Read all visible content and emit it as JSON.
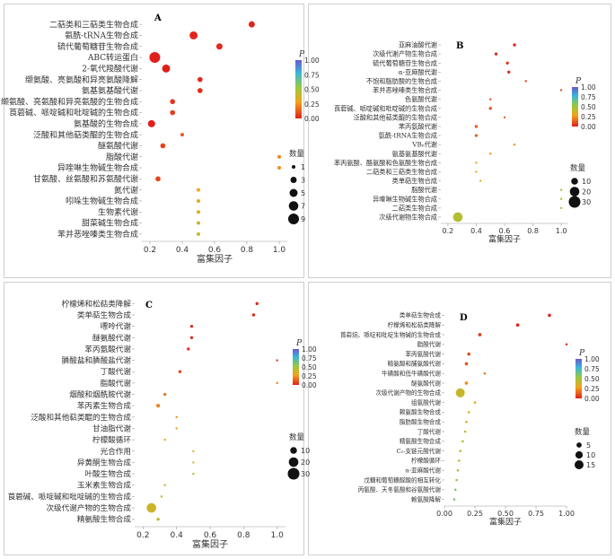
{
  "chart_data": [
    {
      "type": "scatter",
      "panel_label": "A",
      "xlabel": "富集因子",
      "ylabel": "",
      "xlim": [
        0.15,
        1.05
      ],
      "xticks": [
        "0.2",
        "0.4",
        "0.6",
        "0.8",
        "1.0"
      ],
      "xtick_values": [
        0.2,
        0.4,
        0.6,
        0.8,
        1.0
      ],
      "color_title": "P",
      "color_ticks": [
        "1.00",
        "0.75",
        "0.50",
        "0.25",
        "0.00"
      ],
      "size_title": "数量",
      "size_legend": [
        1,
        3,
        5,
        7,
        9
      ],
      "size_labels": [
        "1",
        "3",
        "5",
        "7",
        "9"
      ],
      "size_range": [
        1,
        9
      ],
      "categories": [
        "二萜类和三萜类生物合成",
        "氨酰-tRNA生物合成",
        "硫代葡萄糖苷生物合成",
        "ABC转运蛋白",
        "2-氧代羧酸代谢",
        "缬氨酸、亮氨酸和异亮氨酸降解",
        "氨基氨基酸代谢",
        "缬氨酸、亮氨酸和异亮氨酸的生物合成",
        "莨菪碱、哌啶碱和吡啶碱的生物合成",
        "氨基酸的生物合成",
        "泛酸和其他萜类醌的生物合成",
        "醚氨酸代谢",
        "脂酸代谢",
        "异喹啉生物碱生物合成",
        "甘氨酸、丝氨酸和苏氨酸代谢",
        "氮代谢",
        "吲哚生物碱生物合成",
        "生物素代谢",
        "甜菜碱生物合成",
        "苯并恶唑嗪类生物合成"
      ],
      "points": [
        {
          "x": 0.83,
          "count": 3,
          "p": 0.01
        },
        {
          "x": 0.47,
          "count": 5,
          "p": 0.01
        },
        {
          "x": 0.63,
          "count": 3,
          "p": 0.02
        },
        {
          "x": 0.23,
          "count": 9,
          "p": 0.0
        },
        {
          "x": 0.3,
          "count": 5,
          "p": 0.0
        },
        {
          "x": 0.51,
          "count": 2,
          "p": 0.02
        },
        {
          "x": 0.51,
          "count": 2,
          "p": 0.03
        },
        {
          "x": 0.34,
          "count": 2,
          "p": 0.05
        },
        {
          "x": 0.34,
          "count": 2,
          "p": 0.06
        },
        {
          "x": 0.21,
          "count": 4,
          "p": 0.0
        },
        {
          "x": 0.4,
          "count": 1,
          "p": 0.12
        },
        {
          "x": 0.28,
          "count": 2,
          "p": 0.07
        },
        {
          "x": 1.0,
          "count": 1,
          "p": 0.22
        },
        {
          "x": 1.0,
          "count": 1,
          "p": 0.24
        },
        {
          "x": 0.25,
          "count": 2,
          "p": 0.08
        },
        {
          "x": 0.5,
          "count": 1,
          "p": 0.28
        },
        {
          "x": 0.5,
          "count": 1,
          "p": 0.32
        },
        {
          "x": 0.5,
          "count": 1,
          "p": 0.35
        },
        {
          "x": 0.5,
          "count": 1,
          "p": 0.38
        },
        {
          "x": 0.5,
          "count": 1,
          "p": 0.42
        }
      ]
    },
    {
      "type": "scatter",
      "panel_label": "B",
      "xlabel": "富集因子",
      "ylabel": "",
      "xlim": [
        0.15,
        1.05
      ],
      "xticks": [
        "0.2",
        "0.4",
        "0.6",
        "0.8",
        "1.0"
      ],
      "xtick_values": [
        0.2,
        0.4,
        0.6,
        0.8,
        1.0
      ],
      "color_title": "P",
      "color_ticks": [
        "1.00",
        "0.75",
        "0.50",
        "0.25",
        "0.00"
      ],
      "size_title": "数量",
      "size_legend": [
        10,
        20,
        30
      ],
      "size_labels": [
        "10",
        "20",
        "30"
      ],
      "size_range": [
        1,
        30
      ],
      "categories": [
        "亚麻油酸代谢",
        "次级代谢产物生物合成",
        "硫代葡萄糖苷生物合成",
        "α-亚麻酸代谢",
        "不饱和脂肪酸的生物合成",
        "苯并恶唑嗪类生物合成",
        "色氨酸代谢",
        "莨菪碱、哌啶碱和吡啶碱的生物合成",
        "泛酸和其他萜类醌的生物合成",
        "苯丙氨酸代谢",
        "氨酰-tRNA生物合成",
        "VB₆代谢",
        "氨基氨基酸代谢",
        "苯丙氨酸、酪氨酸和色氨酸生物合成",
        "二萜类和三萜类生物合成",
        "类单萜生物合成",
        "脂酸代谢",
        "异喹啉生物碱生物合成",
        "二萜类生物合成",
        "次级代谢物生物合成"
      ],
      "points": [
        {
          "x": 0.67,
          "count": 2,
          "p": 0.0
        },
        {
          "x": 0.54,
          "count": 2,
          "p": 0.02
        },
        {
          "x": 0.62,
          "count": 2,
          "p": 0.03
        },
        {
          "x": 0.63,
          "count": 2,
          "p": 0.03
        },
        {
          "x": 0.75,
          "count": 1,
          "p": 0.07
        },
        {
          "x": 1.0,
          "count": 1,
          "p": 0.08
        },
        {
          "x": 0.5,
          "count": 1,
          "p": 0.1
        },
        {
          "x": 0.5,
          "count": 2,
          "p": 0.1
        },
        {
          "x": 0.6,
          "count": 1,
          "p": 0.13
        },
        {
          "x": 0.4,
          "count": 2,
          "p": 0.12
        },
        {
          "x": 0.4,
          "count": 2,
          "p": 0.14
        },
        {
          "x": 0.67,
          "count": 1,
          "p": 0.22
        },
        {
          "x": 0.5,
          "count": 1,
          "p": 0.26
        },
        {
          "x": 0.4,
          "count": 1,
          "p": 0.28
        },
        {
          "x": 0.4,
          "count": 1,
          "p": 0.31
        },
        {
          "x": 0.43,
          "count": 1,
          "p": 0.35
        },
        {
          "x": 1.0,
          "count": 1,
          "p": 0.42
        },
        {
          "x": 1.0,
          "count": 1,
          "p": 0.45
        },
        {
          "x": 1.0,
          "count": 1,
          "p": 0.48
        },
        {
          "x": 0.27,
          "count": 20,
          "p": 0.45
        }
      ]
    },
    {
      "type": "scatter",
      "panel_label": "C",
      "xlabel": "富集因子",
      "ylabel": "",
      "xlim": [
        0.15,
        1.05
      ],
      "xticks": [
        "0.2",
        "0.4",
        "0.6",
        "0.8",
        "1.0"
      ],
      "xtick_values": [
        0.2,
        0.4,
        0.6,
        0.8,
        1.0
      ],
      "color_title": "P",
      "color_ticks": [
        "1.00",
        "0.75",
        "0.50",
        "0.25",
        "0.00"
      ],
      "size_title": "数量",
      "size_legend": [
        10,
        20,
        30
      ],
      "size_labels": [
        "10",
        "20",
        "30"
      ],
      "size_range": [
        1,
        30
      ],
      "categories": [
        "柠檬烯和松萜类降解",
        "类单萜生物合成",
        "嘌呤代谢",
        "醚氨酸代谢",
        "苯丙氨酸代谢",
        "膦酸盐和膦酸盐代谢",
        "丁酸代谢",
        "脂酸代谢",
        "烟酸和烟酰胺代谢",
        "苯丙素生物合成",
        "泛酸和其他萜类醌的生物合成",
        "甘油脂代谢",
        "柠檬酸循环",
        "光合作用",
        "异黄酮生物合成",
        "叶酸生物合成",
        "玉米素生物合成",
        "莨菪碱、哌啶碱和吡啶碱的生物合成",
        "次级代谢产物的生物合成",
        "精氨酸生物合成"
      ],
      "points": [
        {
          "x": 0.88,
          "count": 2,
          "p": 0.01
        },
        {
          "x": 0.86,
          "count": 2,
          "p": 0.01
        },
        {
          "x": 0.49,
          "count": 2,
          "p": 0.02
        },
        {
          "x": 0.49,
          "count": 2,
          "p": 0.02
        },
        {
          "x": 0.47,
          "count": 2,
          "p": 0.03
        },
        {
          "x": 1.0,
          "count": 1,
          "p": 0.06
        },
        {
          "x": 0.42,
          "count": 2,
          "p": 0.08
        },
        {
          "x": 1.0,
          "count": 1,
          "p": 0.22
        },
        {
          "x": 0.33,
          "count": 2,
          "p": 0.18
        },
        {
          "x": 0.29,
          "count": 3,
          "p": 0.2
        },
        {
          "x": 0.4,
          "count": 1,
          "p": 0.24
        },
        {
          "x": 0.4,
          "count": 1,
          "p": 0.27
        },
        {
          "x": 0.33,
          "count": 1,
          "p": 0.3
        },
        {
          "x": 0.5,
          "count": 1,
          "p": 0.36
        },
        {
          "x": 0.5,
          "count": 1,
          "p": 0.39
        },
        {
          "x": 0.5,
          "count": 1,
          "p": 0.42
        },
        {
          "x": 0.33,
          "count": 1,
          "p": 0.36
        },
        {
          "x": 0.31,
          "count": 1,
          "p": 0.38
        },
        {
          "x": 0.25,
          "count": 20,
          "p": 0.38
        },
        {
          "x": 0.29,
          "count": 2,
          "p": 0.4
        }
      ]
    },
    {
      "type": "scatter",
      "panel_label": "D",
      "xlabel": "富集因子",
      "ylabel": "",
      "xlim": [
        0.0,
        1.0
      ],
      "xticks": [
        "0.00",
        "0.25",
        "0.50",
        "0.75",
        "1.00"
      ],
      "xtick_values": [
        0.0,
        0.25,
        0.5,
        0.75,
        1.0
      ],
      "color_title": "P",
      "color_ticks": [
        "1.00",
        "0.75",
        "0.50",
        "0.25",
        "0.00"
      ],
      "size_title": "数量",
      "size_legend": [
        5,
        10,
        15
      ],
      "size_labels": [
        "5",
        "10",
        "15"
      ],
      "size_range": [
        1,
        15
      ],
      "categories": [
        "类单萜生物合成",
        "柠檬烯和松萜类降解",
        "莨菪烷、哌啶和吡啶生物碱的生物合成",
        "脂酸代谢",
        "苯丙氨酸代谢",
        "精氨酸和脯氨酸代谢",
        "牛磺酸和低牛磺酸代谢",
        "醚氨酸代谢",
        "次级代谢产物的生物合成",
        "组氨酸代谢",
        "赖氨酸生物合成",
        "脂肪酸生物合成",
        "丁酸代谢",
        "精氨酸生物合成",
        "C₅-支链元酸代谢",
        "柠檬酸循环",
        "α-亚麻酸代谢",
        "戊糖和葡萄糖醛酸的相互转化",
        "丙氨酸、天冬氨酸和谷氨酸代谢",
        "赖氨酸降解"
      ],
      "points": [
        {
          "x": 0.86,
          "count": 2,
          "p": 0.01
        },
        {
          "x": 0.6,
          "count": 2,
          "p": 0.01
        },
        {
          "x": 0.29,
          "count": 2,
          "p": 0.05
        },
        {
          "x": 1.0,
          "count": 1,
          "p": 0.05
        },
        {
          "x": 0.2,
          "count": 2,
          "p": 0.1
        },
        {
          "x": 0.18,
          "count": 2,
          "p": 0.11
        },
        {
          "x": 0.33,
          "count": 1,
          "p": 0.2
        },
        {
          "x": 0.18,
          "count": 2,
          "p": 0.24
        },
        {
          "x": 0.13,
          "count": 15,
          "p": 0.4
        },
        {
          "x": 0.25,
          "count": 1,
          "p": 0.32
        },
        {
          "x": 0.2,
          "count": 1,
          "p": 0.36
        },
        {
          "x": 0.18,
          "count": 1,
          "p": 0.38
        },
        {
          "x": 0.17,
          "count": 1,
          "p": 0.4
        },
        {
          "x": 0.15,
          "count": 1,
          "p": 0.43
        },
        {
          "x": 0.13,
          "count": 1,
          "p": 0.46
        },
        {
          "x": 0.12,
          "count": 1,
          "p": 0.5
        },
        {
          "x": 0.11,
          "count": 1,
          "p": 0.52
        },
        {
          "x": 0.1,
          "count": 1,
          "p": 0.55
        },
        {
          "x": 0.09,
          "count": 1,
          "p": 0.58
        },
        {
          "x": 0.08,
          "count": 1,
          "p": 0.6
        }
      ]
    }
  ]
}
